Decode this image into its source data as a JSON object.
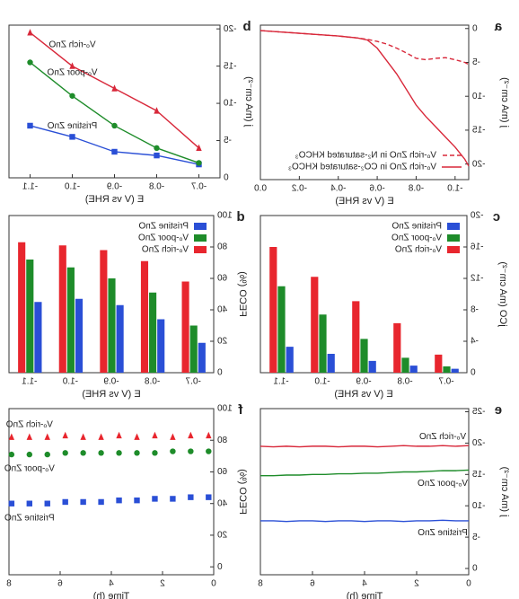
{
  "chart_data": [
    {
      "type": "line",
      "panel": "a",
      "x_label": "E (V vs RHE)",
      "y_label": "j (mA cm⁻²)",
      "x": [
        0,
        -0.1,
        -0.2,
        -0.3,
        -0.4,
        -0.5,
        -0.55,
        -0.6,
        -0.65,
        -0.7,
        -0.75,
        -0.8,
        -0.85,
        -0.9,
        -0.95,
        -1.0,
        -1.05,
        -1.07
      ],
      "series": [
        {
          "name": "Vₒ-rich ZnO in N₂-saturated KHCO₃",
          "color": "#d8283a",
          "linestyle": "dashed",
          "values": [
            -0.3,
            -0.5,
            -0.7,
            -0.9,
            -1.1,
            -1.4,
            -1.6,
            -1.9,
            -2.3,
            -2.9,
            -3.6,
            -4.4,
            -4.6,
            -4.4,
            -4.3,
            -4.6,
            -5.0,
            -5.3
          ]
        },
        {
          "name": "Vₒ-rich ZnO in CO₂-saturated KHCO₃",
          "color": "#d8283a",
          "linestyle": "solid",
          "values": [
            -0.3,
            -0.5,
            -0.7,
            -0.9,
            -1.1,
            -1.4,
            -1.7,
            -2.9,
            -4.8,
            -6.7,
            -9,
            -11.3,
            -13,
            -14.5,
            -16,
            -17.5,
            -19.3,
            -20.3
          ]
        }
      ],
      "xlim": [
        -1.07,
        0
      ],
      "xticks": [
        {
          "value": -1,
          "label": "-1.0"
        },
        -0.8,
        -0.6,
        -0.4,
        -0.2,
        {
          "value": 0,
          "label": "0.0"
        }
      ],
      "ylim": [
        -22.3,
        0.5
      ],
      "yticks": [
        0,
        -5,
        -10,
        -15,
        -20
      ],
      "legend": "lower left"
    },
    {
      "type": "line",
      "panel": "b",
      "x_label": "E (V vs RHE)",
      "y_label": "j (mA cm⁻²)",
      "categories": [
        "-0.7",
        "-0.8",
        "-0.9",
        "-1.0",
        "-1.1"
      ],
      "series": [
        {
          "name": "Pristine ZnO",
          "color": "#2a4fd6",
          "marker": "square",
          "values": [
            -1.8,
            -3,
            -3.5,
            -5.5,
            -7
          ]
        },
        {
          "name": "Vₒ-poor ZnO",
          "color": "#1e8c2a",
          "marker": "circle",
          "values": [
            -2,
            -4,
            -7,
            -11,
            -15.5
          ]
        },
        {
          "name": "Vₒ-rich ZnO",
          "color": "#d8283a",
          "marker": "triangle",
          "values": [
            -4,
            -9,
            -12,
            -15,
            -19.5
          ]
        }
      ],
      "ylim": [
        0,
        -20.5
      ],
      "yticks": [
        0,
        -5,
        -10,
        -15,
        -20
      ],
      "legend": "inline"
    },
    {
      "type": "bar",
      "panel": "c",
      "x_label": "E (V vs RHE)",
      "y_label": "jCO (mA cm⁻²)",
      "categories": [
        "-0.7",
        "-0.8",
        "-0.9",
        "-1.0",
        "-1.1"
      ],
      "series": [
        {
          "name": "Pristine ZnO",
          "color": "#2a4fd6",
          "values": [
            -0.5,
            -0.9,
            -1.5,
            -2.4,
            -3.3
          ]
        },
        {
          "name": "Vₒ-poor ZnO",
          "color": "#1e8c2a",
          "values": [
            -0.8,
            -1.9,
            -4.3,
            -7.4,
            -11
          ]
        },
        {
          "name": "Vₒ-rich ZnO",
          "color": "#e8262e",
          "values": [
            -2.3,
            -6.3,
            -9.1,
            -12.2,
            -16
          ]
        }
      ],
      "ylim": [
        0,
        -20
      ],
      "yticks": [
        0,
        -4,
        -8,
        -12,
        -16,
        -20
      ],
      "legend": "upper left"
    },
    {
      "type": "bar",
      "panel": "d",
      "x_label": "E (V vs RHE)",
      "y_label": "FECO (%)",
      "categories": [
        "-0.7",
        "-0.8",
        "-0.9",
        "-1.0",
        "-1.1"
      ],
      "series": [
        {
          "name": "Pristine ZnO",
          "color": "#2a4fd6",
          "values": [
            19,
            34,
            43,
            47,
            45
          ]
        },
        {
          "name": "Vₒ-poor ZnO",
          "color": "#1e8c2a",
          "values": [
            30,
            51,
            60,
            67,
            72
          ]
        },
        {
          "name": "Vₒ-rich ZnO",
          "color": "#e8262e",
          "values": [
            58,
            71,
            78,
            81,
            83
          ]
        }
      ],
      "ylim": [
        0,
        100
      ],
      "yticks": [
        0,
        20,
        40,
        60,
        80,
        100
      ],
      "legend": "upper left"
    },
    {
      "type": "line",
      "panel": "e",
      "x_label": "Time (h)",
      "y_label": "j (mA cm⁻²)",
      "x": [
        0,
        0.5,
        1,
        1.5,
        2,
        2.5,
        3,
        3.5,
        4,
        4.5,
        5,
        5.5,
        6,
        6.5,
        7,
        7.5,
        8
      ],
      "series": [
        {
          "name": "Vₒ-rich ZnO",
          "color": "#d8283a",
          "values": [
            -19.6,
            -19.5,
            -19.6,
            -19.5,
            -19.5,
            -19.6,
            -19.5,
            -19.4,
            -19.5,
            -19.5,
            -19.4,
            -19.5,
            -19.5,
            -19.4,
            -19.5,
            -19.4,
            -19.5
          ]
        },
        {
          "name": "Vₒ-poor ZnO",
          "color": "#1e8c2a",
          "values": [
            -15.7,
            -15.6,
            -15.6,
            -15.5,
            -15.4,
            -15.4,
            -15.3,
            -15.2,
            -15.2,
            -15.1,
            -15.1,
            -15.0,
            -15.0,
            -14.9,
            -14.9,
            -14.8,
            -14.8
          ]
        },
        {
          "name": "Pristine ZnO",
          "color": "#2a4fd6",
          "values": [
            -7.6,
            -7.6,
            -7.7,
            -7.6,
            -7.6,
            -7.5,
            -7.6,
            -7.6,
            -7.5,
            -7.6,
            -7.6,
            -7.5,
            -7.6,
            -7.6,
            -7.5,
            -7.6,
            -7.6
          ]
        }
      ],
      "xlim": [
        0,
        8
      ],
      "xticks": [
        0,
        2,
        4,
        6,
        8
      ],
      "ylim": [
        1,
        -25.5
      ],
      "yticks": [
        0,
        -5,
        -10,
        -15,
        -20,
        -25
      ],
      "legend": "inline"
    },
    {
      "type": "scatter",
      "panel": "f",
      "x_label": "Time (h)",
      "y_label": "FECO (%)",
      "x": [
        0.2,
        0.9,
        1.6,
        2.3,
        3.0,
        3.7,
        4.4,
        5.1,
        5.8,
        6.5,
        7.2,
        7.9
      ],
      "series": [
        {
          "name": "Vₒ-rich ZnO",
          "color": "#e8262e",
          "marker": "triangle",
          "values": [
            83,
            83,
            82,
            83,
            82,
            83,
            82,
            82,
            83,
            82,
            82,
            82
          ]
        },
        {
          "name": "Vₒ-poor ZnO",
          "color": "#1e8c2a",
          "marker": "circle",
          "values": [
            73,
            73,
            73,
            72,
            72,
            72,
            72,
            72,
            72,
            71,
            71,
            71
          ]
        },
        {
          "name": "Pristine ZnO",
          "color": "#2a4fd6",
          "marker": "square",
          "values": [
            44,
            44,
            43,
            43,
            42,
            42,
            41,
            41,
            41,
            40,
            40,
            40
          ]
        }
      ],
      "xlim": [
        0,
        8
      ],
      "xticks": [
        0,
        2,
        4,
        6,
        8
      ],
      "ylim": [
        -5,
        100
      ],
      "yticks": [
        0,
        20,
        40,
        60,
        80,
        100
      ],
      "legend": "inline"
    }
  ]
}
